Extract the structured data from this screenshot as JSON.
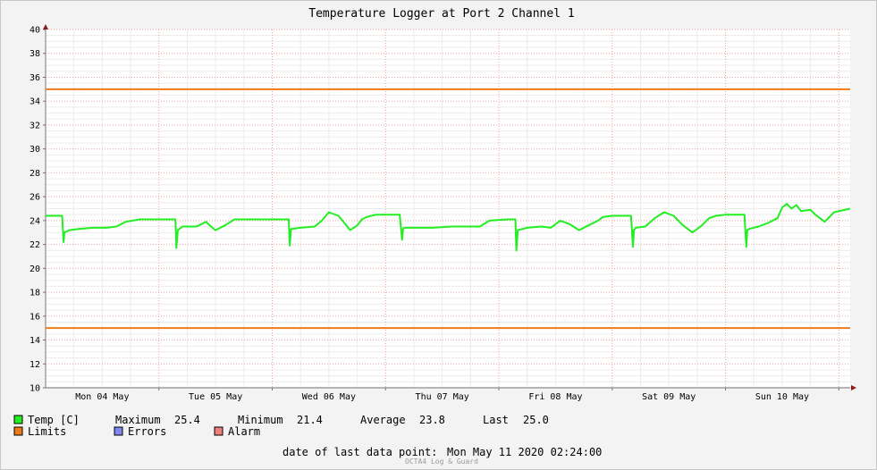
{
  "chart_data": {
    "type": "line",
    "title": "Temperature Logger at Port 2 Channel 1",
    "ylim": [
      10,
      40
    ],
    "y_ticks": [
      10,
      12,
      14,
      16,
      18,
      20,
      22,
      24,
      26,
      28,
      30,
      32,
      34,
      36,
      38,
      40
    ],
    "x_range_hours": [
      0,
      170.4
    ],
    "x_tick_labels": [
      "Mon 04 May",
      "Tue 05 May",
      "Wed 06 May",
      "Thu 07 May",
      "Fri 08 May",
      "Sat 09 May",
      "Sun 10 May"
    ],
    "x_tick_label_hours": [
      12,
      36,
      60,
      84,
      108,
      132,
      156
    ],
    "grid": true,
    "limits": {
      "upper": 35.0,
      "lower": 15.0
    },
    "series": [
      {
        "name": "Temp [C]",
        "color": "#22ee22",
        "x_hours": [
          0,
          3.5,
          3.8,
          4.0,
          5,
          7,
          10,
          13,
          15,
          17,
          20,
          22,
          23,
          27.5,
          27.7,
          28.0,
          29,
          32,
          34,
          35,
          36,
          37,
          38,
          40,
          44,
          47,
          50,
          51.5,
          51.7,
          52.0,
          54,
          57,
          58.5,
          60,
          62,
          63.5,
          64.5,
          66,
          67,
          68,
          70,
          75,
          75.5,
          75.7,
          76.0,
          78,
          82,
          86,
          90,
          92,
          94,
          98,
          99.5,
          99.7,
          100.0,
          102,
          105,
          107,
          109,
          111,
          113,
          115,
          117,
          118,
          120,
          122,
          124,
          124.4,
          124.6,
          125.0,
          127,
          129,
          131,
          133,
          135,
          137,
          139,
          140.5,
          142,
          144,
          148,
          148.4,
          148.6,
          149.0,
          151,
          153,
          155,
          156,
          157,
          158,
          159,
          160,
          162,
          163,
          164,
          165,
          167,
          170.4
        ],
        "y_values": [
          24.4,
          24.4,
          22.2,
          23.0,
          23.2,
          23.3,
          23.4,
          23.4,
          23.5,
          23.9,
          24.1,
          24.1,
          24.1,
          24.1,
          21.7,
          23.2,
          23.5,
          23.5,
          23.9,
          23.5,
          23.2,
          23.4,
          23.6,
          24.1,
          24.1,
          24.1,
          24.1,
          24.1,
          21.9,
          23.3,
          23.4,
          23.5,
          24.0,
          24.7,
          24.4,
          23.7,
          23.2,
          23.6,
          24.1,
          24.3,
          24.5,
          24.5,
          22.4,
          23.3,
          23.4,
          23.4,
          23.4,
          23.5,
          23.5,
          23.5,
          24.0,
          24.1,
          24.1,
          21.5,
          23.2,
          23.4,
          23.5,
          23.4,
          24.0,
          23.7,
          23.2,
          23.6,
          24.0,
          24.3,
          24.4,
          24.4,
          24.4,
          21.8,
          23.2,
          23.4,
          23.5,
          24.2,
          24.7,
          24.4,
          23.6,
          23.0,
          23.6,
          24.2,
          24.4,
          24.5,
          24.5,
          21.8,
          23.2,
          23.3,
          23.5,
          23.8,
          24.2,
          25.1,
          25.4,
          25.0,
          25.3,
          24.8,
          24.9,
          24.5,
          24.2,
          23.9,
          24.7,
          25.0
        ]
      }
    ]
  },
  "legend": {
    "temp_label": "Temp [C]",
    "maximum_label": "Maximum",
    "maximum_value": "25.4",
    "minimum_label": "Minimum",
    "minimum_value": "21.4",
    "average_label": "Average",
    "average_value": "23.8",
    "last_label": "Last",
    "last_value": "25.0",
    "limits_label": "Limits",
    "errors_label": "Errors",
    "alarm_label": "Alarm",
    "temp_color": "#22ee22",
    "limits_color": "#ee7a1a",
    "errors_color": "#7f86ee",
    "alarm_color": "#ee7f7f"
  },
  "footer": {
    "last_point_label": "date of last data point:",
    "last_point_value": "Mon May 11 2020 02:24:00",
    "watermark": "OCTA4 Log & Guard"
  }
}
